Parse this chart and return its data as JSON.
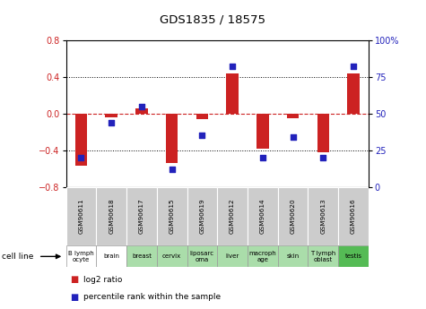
{
  "title": "GDS1835 / 18575",
  "samples": [
    "GSM90611",
    "GSM90618",
    "GSM90617",
    "GSM90615",
    "GSM90619",
    "GSM90612",
    "GSM90614",
    "GSM90620",
    "GSM90613",
    "GSM90616"
  ],
  "cell_lines": [
    "B lymph\nocyte",
    "brain",
    "breast",
    "cervix",
    "liposarc\noma",
    "liver",
    "macroph\nage",
    "skin",
    "T lymph\noblast",
    "testis"
  ],
  "log2_ratio": [
    -0.57,
    -0.04,
    0.06,
    -0.54,
    -0.06,
    0.44,
    -0.38,
    -0.05,
    -0.42,
    0.44
  ],
  "percentile_rank": [
    20,
    44,
    55,
    12,
    35,
    82,
    20,
    34,
    20,
    82
  ],
  "bar_color": "#cc2222",
  "dot_color": "#2222bb",
  "ylim_left": [
    -0.8,
    0.8
  ],
  "ylim_right": [
    0,
    100
  ],
  "yticks_left": [
    -0.8,
    -0.4,
    0.0,
    0.4,
    0.8
  ],
  "yticks_right": [
    0,
    25,
    50,
    75,
    100
  ],
  "ytick_labels_right": [
    "0",
    "25",
    "50",
    "75",
    "100%"
  ],
  "bg_white": "#ffffff",
  "bg_green_light": "#aaddaa",
  "bg_green_dark": "#55bb55",
  "bg_gray": "#cccccc",
  "cell_bg": [
    0,
    0,
    1,
    1,
    1,
    1,
    1,
    1,
    1,
    2
  ],
  "legend_red_label": "log2 ratio",
  "legend_blue_label": "percentile rank within the sample",
  "cell_line_label": "cell line"
}
